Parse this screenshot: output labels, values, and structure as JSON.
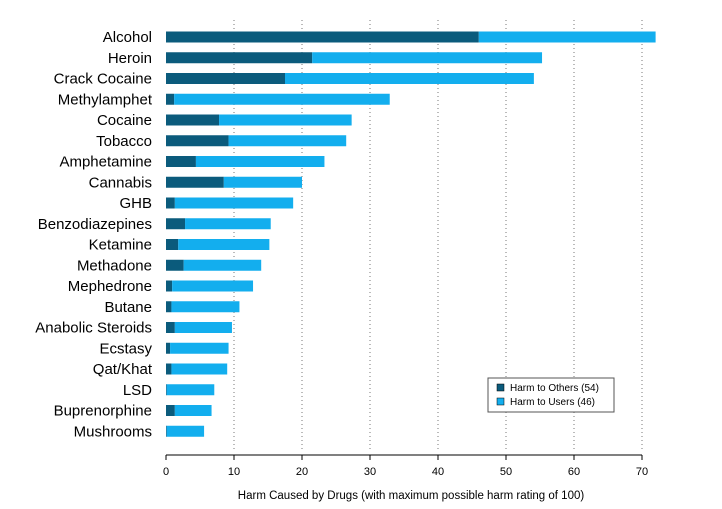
{
  "chart_data": {
    "type": "bar",
    "orientation": "horizontal",
    "stacked": true,
    "xlabel": "Harm Caused by Drugs (with maximum possible harm rating of 100)",
    "ylabel": "",
    "xlim": [
      0,
      72
    ],
    "xticks": [
      0,
      10,
      20,
      30,
      40,
      50,
      60,
      70
    ],
    "grid": "vertical-dotted",
    "legend_position": "bottom-right",
    "categories": [
      "Alcohol",
      "Heroin",
      "Crack Cocaine",
      "Methylamphet",
      "Cocaine",
      "Tobacco",
      "Amphetamine",
      "Cannabis",
      "GHB",
      "Benzodiazepines",
      "Ketamine",
      "Methadone",
      "Mephedrone",
      "Butane",
      "Anabolic Steroids",
      "Ecstasy",
      "Qat/Khat",
      "LSD",
      "Buprenorphine",
      "Mushrooms"
    ],
    "series": [
      {
        "name": "Harm to Others (54)",
        "color": "#0b5b7c",
        "values": [
          46,
          21.5,
          17.5,
          1.2,
          7.8,
          9.2,
          4.4,
          8.5,
          1.3,
          2.8,
          1.8,
          2.6,
          0.9,
          0.8,
          1.3,
          0.6,
          0.8,
          0.1,
          1.3,
          0.1
        ]
      },
      {
        "name": "Harm to Users (46)",
        "color": "#13aeee",
        "values": [
          26,
          33.8,
          36.6,
          31.7,
          19.5,
          17.3,
          18.9,
          11.5,
          17.4,
          12.6,
          13.4,
          11.4,
          11.9,
          10.0,
          8.4,
          8.6,
          8.2,
          7.0,
          5.4,
          5.5
        ]
      }
    ]
  }
}
